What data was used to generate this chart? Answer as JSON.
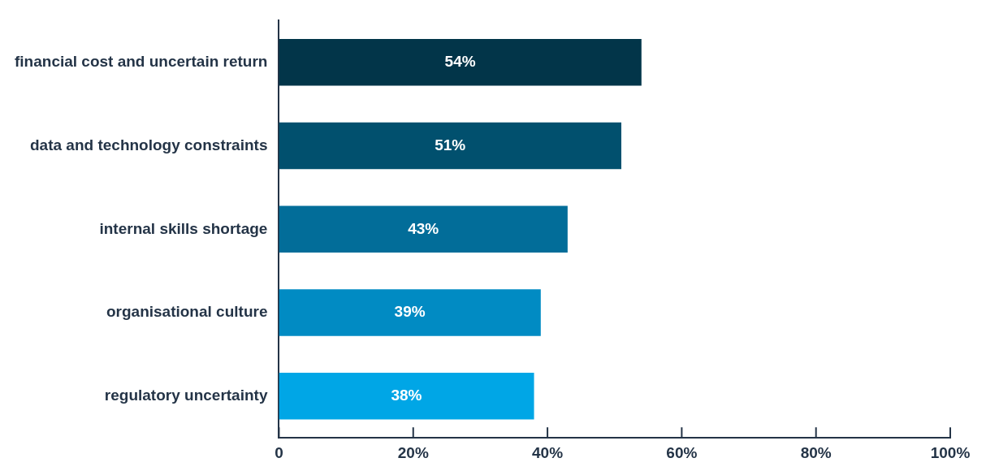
{
  "chart_data": {
    "type": "bar",
    "orientation": "horizontal",
    "categories": [
      "financial cost and uncertain return",
      "data and technology constraints",
      "internal skills shortage",
      "organisational culture",
      "regulatory uncertainty"
    ],
    "values": [
      54,
      51,
      43,
      39,
      38
    ],
    "value_labels": [
      "54%",
      "51%",
      "43%",
      "39%",
      "38%"
    ],
    "colors": [
      "#023549",
      "#01506e",
      "#026d99",
      "#018bc3",
      "#00a6e6"
    ],
    "xlim": [
      0,
      100
    ],
    "xticks": [
      0,
      {
        "value": 20,
        "label": "20%"
      },
      {
        "value": 40,
        "label": "40%"
      },
      {
        "value": 60,
        "label": "60%"
      },
      {
        "value": 80,
        "label": "80%"
      },
      {
        "value": 100,
        "label": "100%"
      }
    ],
    "grid": false,
    "legend": false
  }
}
